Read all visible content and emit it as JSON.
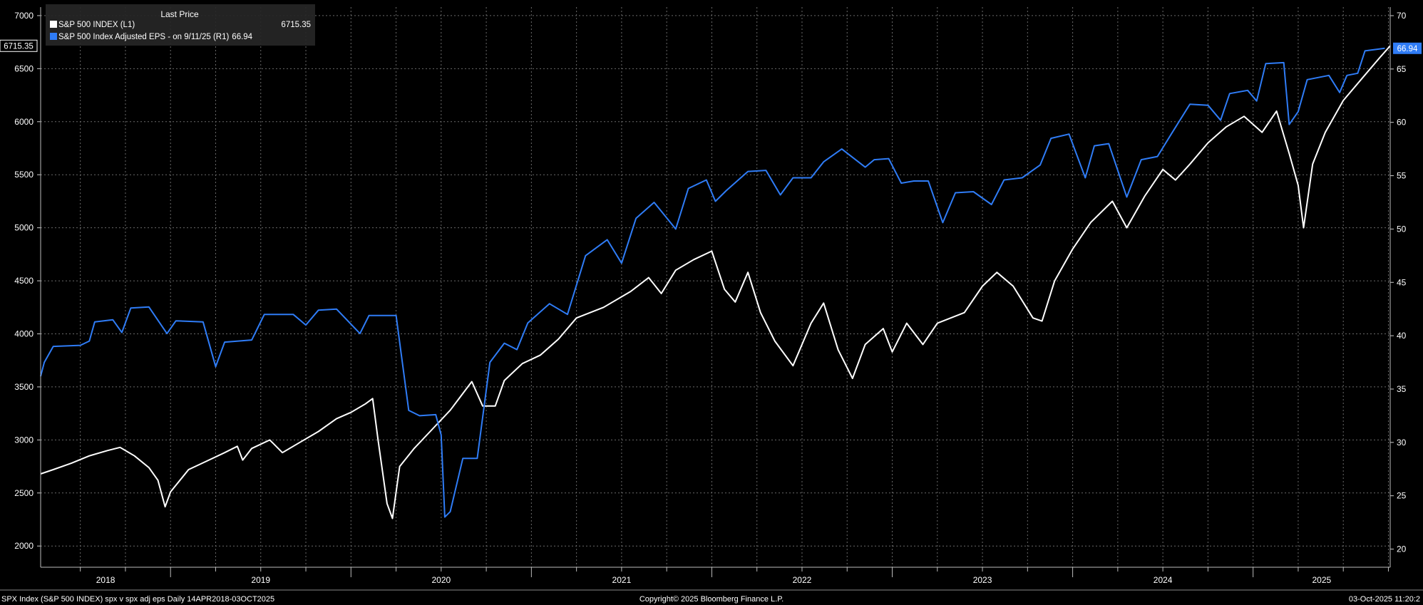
{
  "chart_data": {
    "type": "line",
    "legend": {
      "header": "Last Price",
      "placement": "top-left",
      "items": [
        {
          "label": "S&P 500 INDEX  (L1)",
          "value": "6715.35",
          "color": "#ffffff"
        },
        {
          "label": "S&P 500 Index Adjusted EPS -  on 9/11/25  (R1)",
          "value": "66.94",
          "color": "#2f7cf6"
        }
      ]
    },
    "x_range": [
      2018.28,
      2025.76
    ],
    "x_tick_labels": [
      "2018",
      "2019",
      "2020",
      "2021",
      "2022",
      "2023",
      "2024",
      "2025"
    ],
    "left_axis": {
      "ticks": [
        2000,
        2500,
        3000,
        3500,
        4000,
        4500,
        5000,
        5500,
        6000,
        6500,
        7000
      ],
      "range": [
        1800,
        7080
      ],
      "last_value_label": "6715.35"
    },
    "right_axis": {
      "ticks": [
        20,
        25,
        30,
        35,
        40,
        45,
        50,
        55,
        60,
        65,
        70
      ],
      "range": [
        18.3,
        70.8
      ],
      "last_value_label": "66.94"
    },
    "grid": true,
    "series": [
      {
        "name": "S&P 500 INDEX",
        "axis": "left",
        "color": "#ffffff",
        "points": [
          [
            2018.28,
            2680
          ],
          [
            2018.35,
            2720
          ],
          [
            2018.45,
            2780
          ],
          [
            2018.55,
            2850
          ],
          [
            2018.65,
            2900
          ],
          [
            2018.72,
            2930
          ],
          [
            2018.8,
            2850
          ],
          [
            2018.88,
            2740
          ],
          [
            2018.93,
            2620
          ],
          [
            2018.97,
            2370
          ],
          [
            2019.0,
            2510
          ],
          [
            2019.1,
            2720
          ],
          [
            2019.2,
            2800
          ],
          [
            2019.3,
            2880
          ],
          [
            2019.37,
            2940
          ],
          [
            2019.4,
            2810
          ],
          [
            2019.45,
            2920
          ],
          [
            2019.55,
            3000
          ],
          [
            2019.62,
            2880
          ],
          [
            2019.72,
            2980
          ],
          [
            2019.82,
            3080
          ],
          [
            2019.92,
            3200
          ],
          [
            2020.0,
            3260
          ],
          [
            2020.08,
            3340
          ],
          [
            2020.12,
            3390
          ],
          [
            2020.15,
            3000
          ],
          [
            2020.2,
            2400
          ],
          [
            2020.23,
            2260
          ],
          [
            2020.27,
            2750
          ],
          [
            2020.35,
            2920
          ],
          [
            2020.45,
            3100
          ],
          [
            2020.55,
            3280
          ],
          [
            2020.67,
            3550
          ],
          [
            2020.73,
            3320
          ],
          [
            2020.8,
            3320
          ],
          [
            2020.85,
            3560
          ],
          [
            2020.95,
            3720
          ],
          [
            2021.05,
            3800
          ],
          [
            2021.15,
            3950
          ],
          [
            2021.25,
            4150
          ],
          [
            2021.4,
            4250
          ],
          [
            2021.55,
            4400
          ],
          [
            2021.65,
            4530
          ],
          [
            2021.72,
            4380
          ],
          [
            2021.8,
            4600
          ],
          [
            2021.9,
            4700
          ],
          [
            2022.0,
            4780
          ],
          [
            2022.07,
            4420
          ],
          [
            2022.13,
            4300
          ],
          [
            2022.2,
            4580
          ],
          [
            2022.27,
            4200
          ],
          [
            2022.35,
            3930
          ],
          [
            2022.45,
            3700
          ],
          [
            2022.55,
            4100
          ],
          [
            2022.62,
            4290
          ],
          [
            2022.7,
            3850
          ],
          [
            2022.78,
            3580
          ],
          [
            2022.85,
            3900
          ],
          [
            2022.95,
            4050
          ],
          [
            2023.0,
            3830
          ],
          [
            2023.08,
            4100
          ],
          [
            2023.17,
            3900
          ],
          [
            2023.25,
            4100
          ],
          [
            2023.4,
            4200
          ],
          [
            2023.5,
            4450
          ],
          [
            2023.58,
            4580
          ],
          [
            2023.67,
            4450
          ],
          [
            2023.78,
            4150
          ],
          [
            2023.83,
            4120
          ],
          [
            2023.9,
            4500
          ],
          [
            2024.0,
            4800
          ],
          [
            2024.1,
            5050
          ],
          [
            2024.22,
            5250
          ],
          [
            2024.3,
            5000
          ],
          [
            2024.4,
            5300
          ],
          [
            2024.5,
            5550
          ],
          [
            2024.57,
            5450
          ],
          [
            2024.65,
            5600
          ],
          [
            2024.75,
            5800
          ],
          [
            2024.85,
            5950
          ],
          [
            2024.95,
            6050
          ],
          [
            2025.05,
            5900
          ],
          [
            2025.13,
            6100
          ],
          [
            2025.2,
            5700
          ],
          [
            2025.25,
            5400
          ],
          [
            2025.28,
            5000
          ],
          [
            2025.33,
            5600
          ],
          [
            2025.4,
            5900
          ],
          [
            2025.5,
            6200
          ],
          [
            2025.6,
            6400
          ],
          [
            2025.7,
            6600
          ],
          [
            2025.76,
            6715.35
          ]
        ]
      },
      {
        "name": "S&P 500 Index Adjusted EPS",
        "axis": "right",
        "color": "#2f7cf6",
        "points": [
          [
            2018.28,
            36.2
          ],
          [
            2018.3,
            37.5
          ],
          [
            2018.35,
            39.0
          ],
          [
            2018.5,
            39.1
          ],
          [
            2018.55,
            39.5
          ],
          [
            2018.58,
            41.3
          ],
          [
            2018.68,
            41.5
          ],
          [
            2018.73,
            40.3
          ],
          [
            2018.78,
            42.6
          ],
          [
            2018.88,
            42.7
          ],
          [
            2018.98,
            40.2
          ],
          [
            2019.03,
            41.4
          ],
          [
            2019.18,
            41.3
          ],
          [
            2019.25,
            37.1
          ],
          [
            2019.3,
            39.4
          ],
          [
            2019.45,
            39.6
          ],
          [
            2019.52,
            42.0
          ],
          [
            2019.68,
            42.0
          ],
          [
            2019.75,
            41.0
          ],
          [
            2019.82,
            42.4
          ],
          [
            2019.92,
            42.5
          ],
          [
            2020.05,
            40.2
          ],
          [
            2020.1,
            41.9
          ],
          [
            2020.25,
            41.9
          ],
          [
            2020.32,
            33.0
          ],
          [
            2020.38,
            32.5
          ],
          [
            2020.47,
            32.6
          ],
          [
            2020.5,
            30.7
          ],
          [
            2020.52,
            23.0
          ],
          [
            2020.55,
            23.5
          ],
          [
            2020.62,
            28.5
          ],
          [
            2020.7,
            28.5
          ],
          [
            2020.77,
            37.5
          ],
          [
            2020.85,
            39.3
          ],
          [
            2020.92,
            38.7
          ],
          [
            2020.98,
            41.2
          ],
          [
            2021.1,
            43.0
          ],
          [
            2021.2,
            42.0
          ],
          [
            2021.3,
            47.5
          ],
          [
            2021.42,
            49.0
          ],
          [
            2021.5,
            46.8
          ],
          [
            2021.58,
            51.0
          ],
          [
            2021.68,
            52.5
          ],
          [
            2021.8,
            50.0
          ],
          [
            2021.87,
            53.8
          ],
          [
            2021.97,
            54.6
          ],
          [
            2022.02,
            52.6
          ],
          [
            2022.08,
            53.6
          ],
          [
            2022.2,
            55.4
          ],
          [
            2022.3,
            55.5
          ],
          [
            2022.38,
            53.2
          ],
          [
            2022.45,
            54.8
          ],
          [
            2022.55,
            54.8
          ],
          [
            2022.62,
            56.3
          ],
          [
            2022.72,
            57.5
          ],
          [
            2022.85,
            55.8
          ],
          [
            2022.9,
            56.5
          ],
          [
            2022.98,
            56.6
          ],
          [
            2023.05,
            54.3
          ],
          [
            2023.12,
            54.5
          ],
          [
            2023.2,
            54.5
          ],
          [
            2023.28,
            50.6
          ],
          [
            2023.35,
            53.4
          ],
          [
            2023.45,
            53.5
          ],
          [
            2023.55,
            52.3
          ],
          [
            2023.62,
            54.6
          ],
          [
            2023.72,
            54.8
          ],
          [
            2023.82,
            56.0
          ],
          [
            2023.88,
            58.5
          ],
          [
            2023.98,
            58.9
          ],
          [
            2024.07,
            54.8
          ],
          [
            2024.12,
            57.8
          ],
          [
            2024.2,
            58.0
          ],
          [
            2024.3,
            53.0
          ],
          [
            2024.38,
            56.5
          ],
          [
            2024.47,
            56.8
          ],
          [
            2024.55,
            59.0
          ],
          [
            2024.65,
            61.7
          ],
          [
            2024.75,
            61.6
          ],
          [
            2024.82,
            60.2
          ],
          [
            2024.87,
            62.7
          ],
          [
            2024.97,
            63.0
          ],
          [
            2025.02,
            62.0
          ],
          [
            2025.07,
            65.5
          ],
          [
            2025.17,
            65.6
          ],
          [
            2025.2,
            59.8
          ],
          [
            2025.25,
            61.0
          ],
          [
            2025.3,
            64.0
          ],
          [
            2025.42,
            64.4
          ],
          [
            2025.48,
            62.8
          ],
          [
            2025.52,
            64.4
          ],
          [
            2025.58,
            64.6
          ],
          [
            2025.62,
            66.7
          ],
          [
            2025.73,
            66.94
          ]
        ]
      }
    ]
  },
  "footer": {
    "left": "SPX Index (S&P 500 INDEX) spx v spx adj eps Daily 14APR2018-03OCT2025",
    "center": "Copyright© 2025 Bloomberg Finance L.P.",
    "right": "03-Oct-2025 11:20:2"
  }
}
